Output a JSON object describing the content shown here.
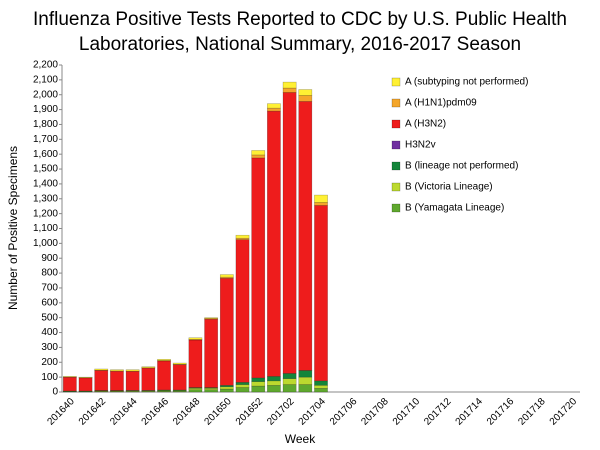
{
  "chart_data": {
    "type": "stacked_bar",
    "title": [
      "Influenza Positive Tests Reported to CDC by U.S. Public Health",
      "Laboratories, National Summary, 2016-2017 Season"
    ],
    "x_label": "Week",
    "y_label": "Number of Positive Specimens",
    "categories": [
      "201640",
      null,
      "201642",
      null,
      "201644",
      null,
      "201646",
      null,
      "201648",
      null,
      "201650",
      null,
      "201652",
      null,
      "201702",
      null,
      "201704",
      null,
      "201706",
      null,
      "201708",
      null,
      "201710",
      null,
      "201712",
      null,
      "201714",
      null,
      "201716",
      null,
      "201718",
      null,
      "201720"
    ],
    "series": [
      {
        "name": "B (Yamagata Lineage)",
        "color": "#5fa82e",
        "values": [
          3,
          3,
          4,
          4,
          5,
          5,
          6,
          6,
          15,
          15,
          20,
          30,
          40,
          45,
          50,
          50,
          25,
          null,
          null,
          null,
          null,
          null,
          null,
          null,
          null,
          null,
          null,
          null,
          null,
          null,
          null,
          null,
          null
        ]
      },
      {
        "name": "B (Victoria Lineage)",
        "color": "#bcd92f",
        "values": [
          2,
          2,
          3,
          3,
          3,
          3,
          4,
          4,
          10,
          10,
          15,
          20,
          30,
          30,
          40,
          50,
          20,
          null,
          null,
          null,
          null,
          null,
          null,
          null,
          null,
          null,
          null,
          null,
          null,
          null,
          null,
          null,
          null
        ]
      },
      {
        "name": "B (lineage not performed)",
        "color": "#13853a",
        "values": [
          2,
          2,
          3,
          3,
          3,
          3,
          4,
          4,
          5,
          5,
          10,
          15,
          25,
          30,
          35,
          45,
          30,
          null,
          null,
          null,
          null,
          null,
          null,
          null,
          null,
          null,
          null,
          null,
          null,
          null,
          null,
          null,
          null
        ]
      },
      {
        "name": "H3N2v",
        "color": "#7030a0",
        "values": [
          0,
          0,
          0,
          0,
          0,
          0,
          0,
          0,
          0,
          0,
          0,
          0,
          0,
          0,
          0,
          0,
          0,
          null,
          null,
          null,
          null,
          null,
          null,
          null,
          null,
          null,
          null,
          null,
          null,
          null,
          null,
          null,
          null
        ]
      },
      {
        "name": "A (H3N2)",
        "color": "#ee1c1c",
        "values": [
          93,
          88,
          135,
          130,
          128,
          150,
          195,
          170,
          320,
          460,
          720,
          960,
          1480,
          1785,
          1890,
          1810,
          1180,
          null,
          null,
          null,
          null,
          null,
          null,
          null,
          null,
          null,
          null,
          null,
          null,
          null,
          null,
          null,
          null
        ]
      },
      {
        "name": "A (H1N1)pdm09",
        "color": "#f4a62a",
        "values": [
          1,
          1,
          2,
          2,
          2,
          2,
          3,
          3,
          5,
          5,
          8,
          10,
          20,
          20,
          30,
          40,
          20,
          null,
          null,
          null,
          null,
          null,
          null,
          null,
          null,
          null,
          null,
          null,
          null,
          null,
          null,
          null,
          null
        ]
      },
      {
        "name": "A (subtyping not performed)",
        "color": "#fff033",
        "values": [
          4,
          4,
          8,
          8,
          9,
          7,
          8,
          8,
          10,
          5,
          17,
          20,
          30,
          30,
          40,
          40,
          50,
          null,
          null,
          null,
          null,
          null,
          null,
          null,
          null,
          null,
          null,
          null,
          null,
          null,
          null,
          null,
          null
        ]
      }
    ],
    "ylim": [
      0,
      2200
    ],
    "yticks": [
      0,
      100,
      200,
      300,
      400,
      500,
      600,
      700,
      800,
      900,
      {
        "value": 1000,
        "label": "1,000"
      },
      {
        "value": 1100,
        "label": "1,100"
      },
      {
        "value": 1200,
        "label": "1,200"
      },
      {
        "value": 1300,
        "label": "1,300"
      },
      {
        "value": 1400,
        "label": "1,400"
      },
      {
        "value": 1500,
        "label": "1,500"
      },
      {
        "value": 1600,
        "label": "1,600"
      },
      {
        "value": 1700,
        "label": "1,700"
      },
      {
        "value": 1800,
        "label": "1,800"
      },
      {
        "value": 1900,
        "label": "1,900"
      },
      {
        "value": 2000,
        "label": "2,000"
      },
      {
        "value": 2100,
        "label": "2,100"
      },
      {
        "value": 2200,
        "label": "2,200"
      }
    ],
    "grid": false,
    "legend": "right"
  }
}
